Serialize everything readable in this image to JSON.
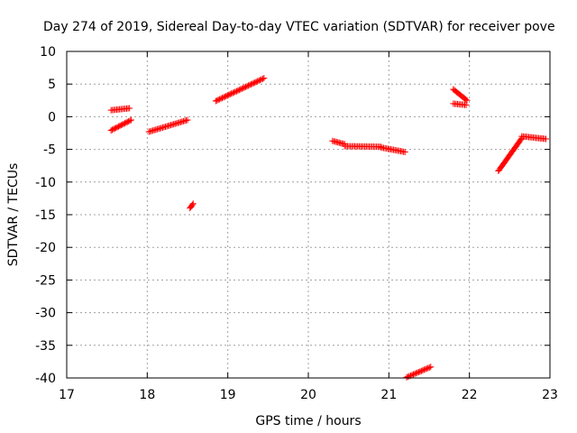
{
  "chart_data": {
    "type": "scatter",
    "title": "Day 274 of 2019, Sidereal Day-to-day VTEC variation (SDTVAR) for receiver pove",
    "xlabel": "GPS time / hours",
    "ylabel": "SDTVAR / TECUs",
    "xlim": [
      17,
      23
    ],
    "ylim": [
      -40,
      10
    ],
    "xticks": [
      17,
      18,
      19,
      20,
      21,
      22,
      23
    ],
    "yticks": [
      10,
      5,
      0,
      -5,
      -10,
      -15,
      -20,
      -25,
      -30,
      -35,
      -40
    ],
    "grid": true,
    "marker": "+",
    "color": "#ff0000",
    "segments": [
      {
        "x": [
          17.55,
          17.78
        ],
        "y": [
          1.0,
          1.3
        ]
      },
      {
        "x": [
          17.55,
          17.8
        ],
        "y": [
          -2.1,
          -0.5
        ]
      },
      {
        "x": [
          18.02,
          18.5
        ],
        "y": [
          -2.3,
          -0.5
        ]
      },
      {
        "x": [
          18.53,
          18.57
        ],
        "y": [
          -14.0,
          -13.3
        ]
      },
      {
        "x": [
          18.85,
          19.45
        ],
        "y": [
          2.4,
          5.9
        ]
      },
      {
        "x": [
          20.3,
          20.45
        ],
        "y": [
          -3.7,
          -4.2
        ]
      },
      {
        "x": [
          20.45,
          20.9
        ],
        "y": [
          -4.5,
          -4.6
        ]
      },
      {
        "x": [
          20.9,
          21.2
        ],
        "y": [
          -4.7,
          -5.4
        ]
      },
      {
        "x": [
          21.22,
          21.52
        ],
        "y": [
          -39.9,
          -38.3
        ]
      },
      {
        "x": [
          21.8,
          21.97
        ],
        "y": [
          4.2,
          2.5
        ]
      },
      {
        "x": [
          21.8,
          21.96
        ],
        "y": [
          2.0,
          1.8
        ]
      },
      {
        "x": [
          22.36,
          22.65
        ],
        "y": [
          -8.3,
          -3.3
        ]
      },
      {
        "x": [
          22.65,
          22.95
        ],
        "y": [
          -3.0,
          -3.4
        ]
      }
    ]
  }
}
